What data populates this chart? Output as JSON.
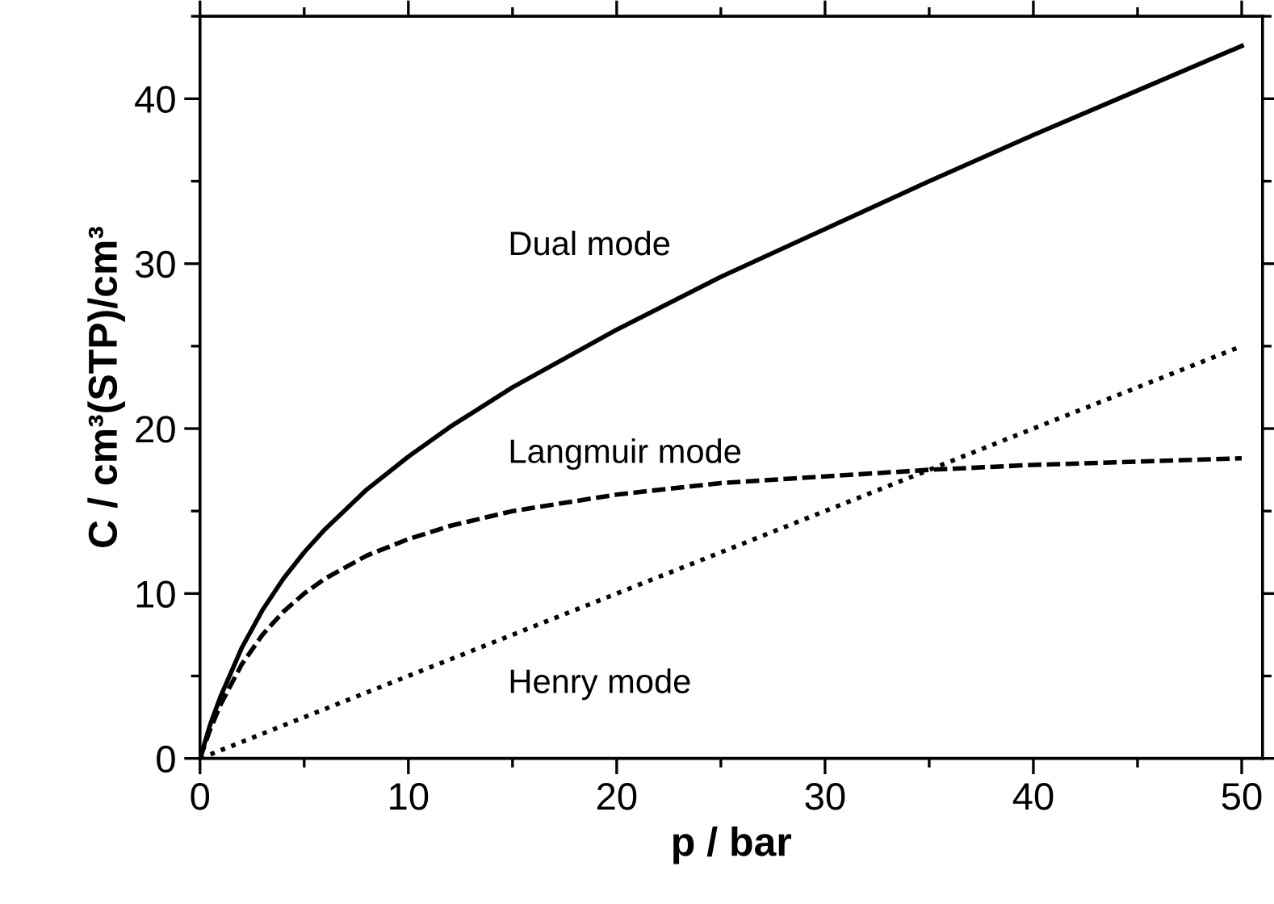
{
  "chart_data": {
    "type": "line",
    "xlabel": "p / bar",
    "ylabel": "C / cm³(STP)/cm³",
    "xlim": [
      0,
      51
    ],
    "ylim": [
      0,
      45
    ],
    "xticks": [
      0,
      10,
      20,
      30,
      40,
      50
    ],
    "yticks": [
      0,
      10,
      20,
      30,
      40
    ],
    "grid": false,
    "legend": false,
    "marker": "none",
    "series": [
      {
        "name": "Dual mode",
        "color": "#000000",
        "line_style": "solid",
        "x": [
          0,
          0.5,
          1,
          2,
          3,
          4,
          5,
          6,
          8,
          10,
          12,
          15,
          20,
          25,
          30,
          35,
          40,
          45,
          50
        ],
        "values": [
          0,
          2.1,
          3.8,
          6.7,
          9.0,
          10.9,
          12.5,
          13.9,
          16.3,
          18.3,
          20.1,
          22.5,
          26.0,
          29.2,
          32.1,
          35.0,
          37.8,
          40.5,
          43.2
        ]
      },
      {
        "name": "Langmuir mode",
        "color": "#000000",
        "line_style": "dashed",
        "x": [
          0,
          0.5,
          1,
          2,
          3,
          4,
          5,
          6,
          8,
          10,
          12,
          15,
          20,
          25,
          30,
          35,
          40,
          45,
          50
        ],
        "values": [
          0,
          1.8,
          3.3,
          5.7,
          7.5,
          8.9,
          10.0,
          10.9,
          12.3,
          13.3,
          14.1,
          15.0,
          16.0,
          16.7,
          17.1,
          17.5,
          17.8,
          18.0,
          18.2
        ]
      },
      {
        "name": "Henry mode",
        "color": "#000000",
        "line_style": "dotted",
        "x": [
          0,
          50
        ],
        "values": [
          0,
          25
        ]
      }
    ]
  }
}
